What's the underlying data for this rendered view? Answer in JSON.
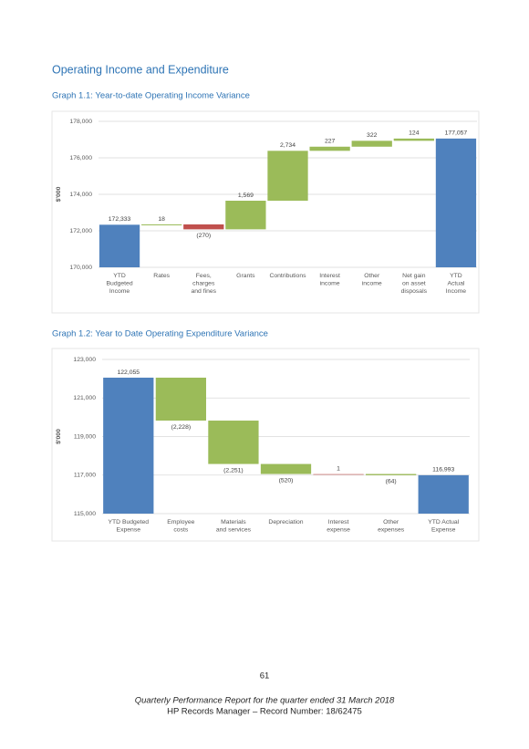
{
  "heading": "Operating Income and Expenditure",
  "chart_data": [
    {
      "type": "waterfall",
      "title": "Graph 1.1:  Year-to-date Operating Income Variance",
      "y_label": "$'000",
      "categories": [
        [
          "YTD",
          "Budgeted",
          "Income"
        ],
        [
          "Rates"
        ],
        [
          "Fees,",
          "charges",
          "and fines"
        ],
        [
          "Grants"
        ],
        [
          "Contributions"
        ],
        [
          "Interest",
          "income"
        ],
        [
          "Other",
          "income"
        ],
        [
          "Net gain",
          "on asset",
          "disposals"
        ],
        [
          "YTD",
          "Actual",
          "Income"
        ]
      ],
      "values": [
        172333,
        18,
        -270,
        1569,
        2734,
        227,
        322,
        124,
        177057
      ],
      "value_labels": [
        "172,333",
        "18",
        "(270)",
        "1,569",
        "2,734",
        "227",
        "322",
        "124",
        "177,057"
      ],
      "ylim": [
        170000,
        178000
      ],
      "yticks": [
        {
          "value": 170000,
          "label": "170,000"
        },
        {
          "value": 172000,
          "label": "172,000"
        },
        {
          "value": 174000,
          "label": "174,000"
        },
        {
          "value": 176000,
          "label": "176,000"
        },
        {
          "value": 178000,
          "label": "178,000"
        }
      ],
      "grid": true,
      "total_color": "#4f81bd",
      "increase_color": "#9bbb59",
      "decrease_color": "#c0504d"
    },
    {
      "type": "waterfall",
      "title": "Graph 1.2:  Year to Date Operating Expenditure Variance",
      "y_label": "$'000",
      "categories": [
        [
          "YTD Budgeted",
          "Expense"
        ],
        [
          "Employee",
          "costs"
        ],
        [
          "Materials",
          "and services"
        ],
        [
          "Depreciation"
        ],
        [
          "Interest",
          "expense"
        ],
        [
          "Other",
          "expenses"
        ],
        [
          "YTD Actual",
          "Expense"
        ]
      ],
      "values": [
        122055,
        -2228,
        -2251,
        -520,
        1,
        -64,
        116993
      ],
      "value_labels": [
        "122,055",
        "(2,228)",
        "(2,251)",
        "(520)",
        "1",
        "(64)",
        "116,993"
      ],
      "ylim": [
        115000,
        123000
      ],
      "yticks": [
        {
          "value": 115000,
          "label": "115,000"
        },
        {
          "value": 117000,
          "label": "117,000"
        },
        {
          "value": 119000,
          "label": "119,000"
        },
        {
          "value": 121000,
          "label": "121,000"
        },
        {
          "value": 123000,
          "label": "123,000"
        }
      ],
      "grid": true,
      "total_color": "#4f81bd",
      "increase_color": "#d99694",
      "decrease_color": "#9bbb59"
    }
  ],
  "page_number": "61",
  "footer": [
    "Quarterly Performance Report for the quarter ended 31 March 2018",
    "HP Records Manager – Record Number: 18/62475"
  ]
}
